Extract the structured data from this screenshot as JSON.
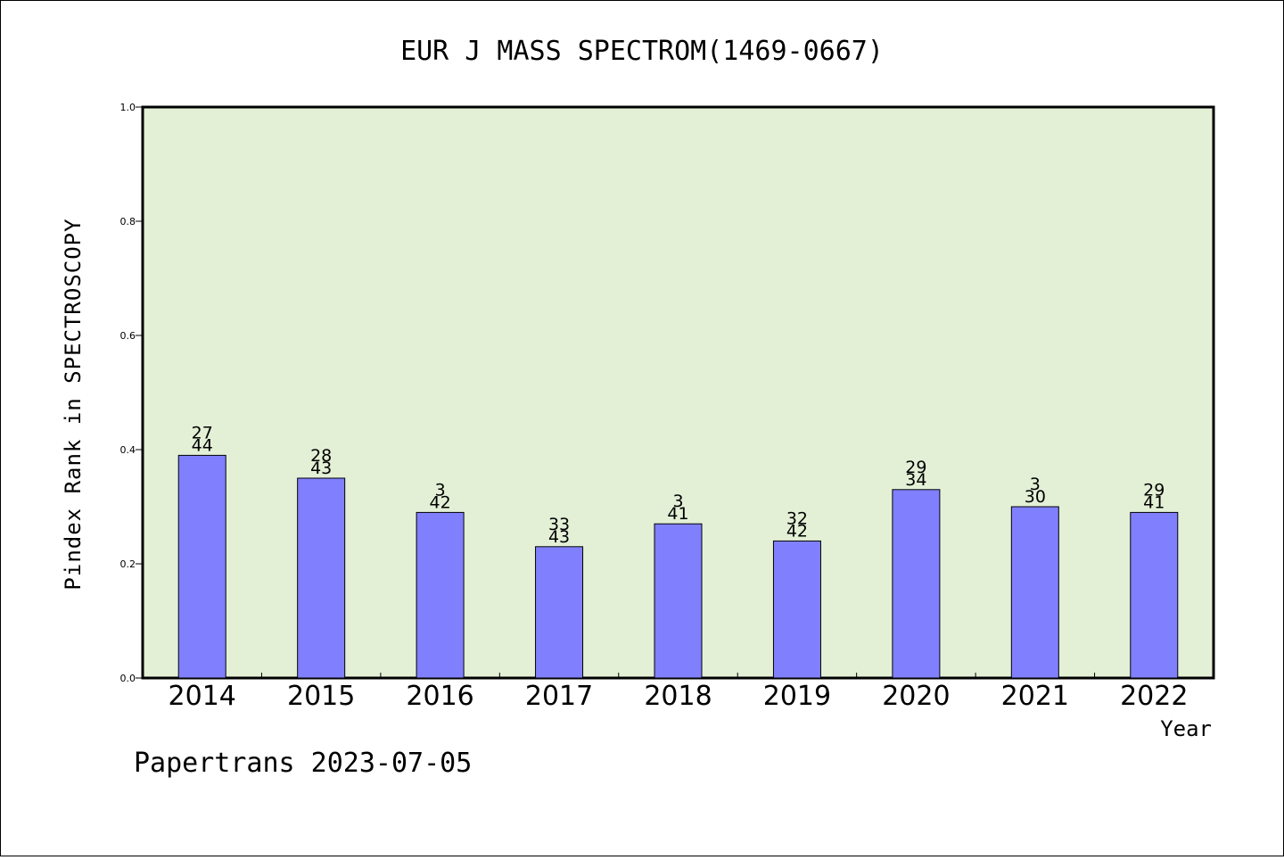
{
  "chart_data": {
    "type": "bar",
    "title": "EUR J MASS SPECTROM(1469-0667)",
    "ylabel": "Pindex Rank in SPECTROSCOPY",
    "xlabel": "Year",
    "categories": [
      "2014",
      "2015",
      "2016",
      "2017",
      "2018",
      "2019",
      "2020",
      "2021",
      "2022"
    ],
    "values": [
      0.39,
      0.35,
      0.29,
      0.23,
      0.27,
      0.24,
      0.33,
      0.3,
      0.29
    ],
    "labels_top": [
      "27",
      "28",
      "3",
      "33",
      "3",
      "32",
      "29",
      "3",
      "29"
    ],
    "labels_bottom": [
      "44",
      "43",
      "42",
      "43",
      "41",
      "42",
      "34",
      "30",
      "41"
    ],
    "ylim": [
      0,
      1.0
    ],
    "yticks": [
      "0.0",
      "0.2",
      "0.4",
      "0.6",
      "0.8",
      "1.0"
    ],
    "grid": false,
    "colors": {
      "plot_background": "#e3f0d6",
      "bar_fill": "#8080ff",
      "bar_stroke": "#000000"
    }
  },
  "footer": {
    "text": "Papertrans 2023-07-05"
  }
}
